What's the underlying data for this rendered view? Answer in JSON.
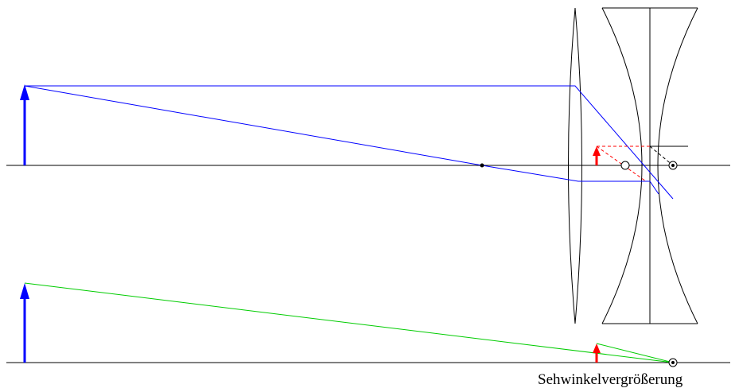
{
  "caption": "Sehwinkelvergrößerung",
  "colors": {
    "axis": "#000000",
    "ray": "#0000ff",
    "object_arrow": "#0000ff",
    "image_arrow": "#ff0000",
    "virtual_ray": "#ff0000",
    "green_ray": "#00cc00",
    "lens": "#000000"
  }
}
